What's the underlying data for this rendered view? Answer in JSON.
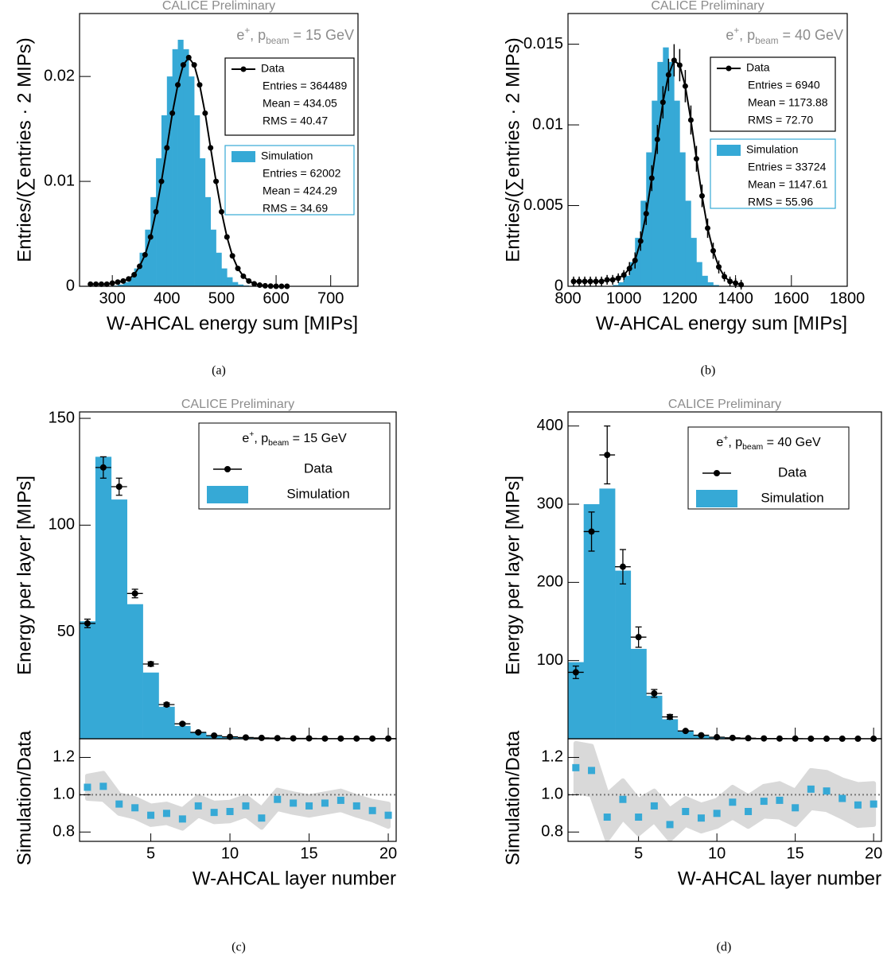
{
  "chart_data": [
    {
      "type": "histogram",
      "title": "CALICE Preliminary",
      "caption": "(a)",
      "xlabel": "W-AHCAL energy sum [MIPs]",
      "ylabel": "Entries/(∑entries · 2 MIPs)",
      "beam_label": [
        "e",
        "+",
        ", p",
        "beam",
        " = 15 GeV"
      ],
      "xlim": [
        240,
        750
      ],
      "xticks": [
        300,
        400,
        500,
        600,
        700
      ],
      "ylim": [
        0,
        0.026
      ],
      "yticks": [
        0,
        0.01,
        0.02
      ],
      "series": [
        {
          "name": "Data",
          "color": "#000000",
          "x": [
            260,
            270,
            280,
            290,
            300,
            310,
            320,
            330,
            340,
            350,
            360,
            370,
            380,
            390,
            400,
            410,
            420,
            430,
            440,
            450,
            460,
            470,
            480,
            490,
            500,
            510,
            520,
            530,
            540,
            550,
            560,
            570,
            580,
            590,
            600,
            610,
            620
          ],
          "values": [
            0.0002,
            0.0002,
            0.0002,
            0.0002,
            0.0003,
            0.0004,
            0.0005,
            0.0007,
            0.0011,
            0.0019,
            0.003,
            0.0047,
            0.0071,
            0.01,
            0.0132,
            0.0165,
            0.0192,
            0.0211,
            0.0218,
            0.0211,
            0.0192,
            0.0165,
            0.0132,
            0.01,
            0.0071,
            0.0047,
            0.0029,
            0.0017,
            0.00096,
            0.0005,
            0.00024,
            0.00011,
            5e-05,
            2e-05,
            0,
            0,
            0
          ],
          "stats": [
            "Entries = 364489",
            "Mean = 434.05",
            "RMS = 40.47"
          ]
        },
        {
          "name": "Simulation",
          "color": "#36a9d6",
          "bins": [
            300,
            310,
            320,
            330,
            340,
            350,
            360,
            370,
            380,
            390,
            400,
            410,
            420,
            430,
            440,
            450,
            460,
            470,
            480,
            490,
            500,
            510,
            520,
            530,
            540,
            550
          ],
          "values": [
            7e-05,
            0.00017,
            0.0004,
            0.00086,
            0.0017,
            0.0032,
            0.0054,
            0.0085,
            0.0122,
            0.0163,
            0.02,
            0.0226,
            0.0235,
            0.0226,
            0.02,
            0.0163,
            0.0122,
            0.0085,
            0.0054,
            0.0032,
            0.0017,
            0.00086,
            0.0004,
            0.00017,
            7e-05
          ],
          "stats": [
            "Entries = 62002",
            "Mean = 424.29",
            "RMS = 34.69"
          ]
        }
      ]
    },
    {
      "type": "histogram",
      "title": "CALICE Preliminary",
      "caption": "(b)",
      "xlabel": "W-AHCAL energy sum [MIPs]",
      "ylabel": "Entries/(∑entries · 2 MIPs)",
      "beam_label": [
        "e",
        "+",
        ", p",
        "beam",
        " = 40 GeV"
      ],
      "xlim": [
        800,
        1800
      ],
      "xticks": [
        800,
        1000,
        1200,
        1400,
        1600,
        1800
      ],
      "ylim": [
        0,
        0.0169
      ],
      "yticks": [
        0,
        0.005,
        0.01,
        0.015
      ],
      "series": [
        {
          "name": "Data",
          "color": "#000000",
          "x": [
            820,
            840,
            860,
            880,
            900,
            920,
            940,
            960,
            980,
            1000,
            1020,
            1040,
            1060,
            1080,
            1100,
            1120,
            1140,
            1160,
            1180,
            1200,
            1220,
            1240,
            1260,
            1280,
            1300,
            1320,
            1340,
            1360,
            1380,
            1400,
            1420
          ],
          "values": [
            0.0003,
            0.0003,
            0.0003,
            0.0003,
            0.0003,
            0.0003,
            0.0004,
            0.0004,
            0.0005,
            0.0007,
            0.0011,
            0.0016,
            0.0028,
            0.0045,
            0.0067,
            0.0091,
            0.0114,
            0.0131,
            0.014,
            0.0137,
            0.0124,
            0.0103,
            0.0079,
            0.0056,
            0.0036,
            0.0022,
            0.0012,
            0.0006,
            0.0003,
            0.0002,
            0.0001
          ],
          "errors": [
            0.0003,
            0.0003,
            0.0003,
            0.0003,
            0.0003,
            0.0003,
            0.0003,
            0.0003,
            0.0003,
            0.0003,
            0.0004,
            0.0005,
            0.0006,
            0.0007,
            0.0008,
            0.0009,
            0.001,
            0.001,
            0.001,
            0.001,
            0.001,
            0.0009,
            0.0008,
            0.0007,
            0.0006,
            0.0005,
            0.0004,
            0.0003,
            0.0003,
            0.0003,
            0.0003
          ],
          "stats": [
            "Entries = 6940",
            "Mean = 1173.88",
            "RMS = 72.70"
          ]
        },
        {
          "name": "Simulation",
          "color": "#36a9d6",
          "bins": [
            960,
            980,
            1000,
            1020,
            1040,
            1060,
            1080,
            1100,
            1120,
            1140,
            1160,
            1180,
            1200,
            1220,
            1240,
            1260,
            1280,
            1300,
            1320,
            1340
          ],
          "values": [
            8e-05,
            0.00025,
            0.00065,
            0.0015,
            0.003,
            0.0053,
            0.0083,
            0.0115,
            0.0139,
            0.0148,
            0.0139,
            0.0115,
            0.0083,
            0.0053,
            0.003,
            0.0015,
            0.00065,
            0.00025,
            8e-05
          ],
          "stats": [
            "Entries = 33724",
            "Mean = 1147.61",
            "RMS = 55.96"
          ]
        }
      ]
    },
    {
      "type": "layers",
      "title": "CALICE Preliminary",
      "caption": "(c)",
      "xlabel": "W-AHCAL layer number",
      "ylabel": "Energy per layer [MIPs]",
      "beam_label": [
        "e",
        "+",
        ", p",
        "beam",
        " = 15 GeV"
      ],
      "x": [
        1,
        2,
        3,
        4,
        5,
        6,
        7,
        8,
        9,
        10,
        11,
        12,
        13,
        14,
        15,
        16,
        17,
        18,
        19,
        20
      ],
      "x_error": 0.5,
      "xlim": [
        0.5,
        20.5
      ],
      "xticks": [
        5,
        10,
        15,
        20
      ],
      "ylim": [
        0,
        153
      ],
      "yticks": [
        50,
        100,
        150
      ],
      "series": [
        {
          "name": "Data",
          "color": "#000000",
          "values": [
            54,
            127,
            118,
            68,
            35,
            16,
            7,
            3,
            1.5,
            0.9,
            0.6,
            0.4,
            0.3,
            0.2,
            0.2,
            0.1,
            0.1,
            0.1,
            0.1,
            0.1
          ],
          "errors": [
            2,
            5,
            4,
            2,
            1,
            0.8,
            0.5,
            0.3,
            0.2,
            0.1,
            0.1,
            0.1,
            0.1,
            0.1,
            0.1,
            0.1,
            0.1,
            0.1,
            0.1,
            0.1
          ]
        },
        {
          "name": "Simulation",
          "color": "#36a9d6",
          "values": [
            55,
            132,
            112,
            63,
            31,
            15,
            6,
            3,
            1.5,
            0.8,
            0.5,
            0.3,
            0.2,
            0.1,
            0.1,
            0.1,
            0.05,
            0.05,
            0.03,
            0.02
          ]
        }
      ],
      "ratio": {
        "ylabel": "Simulation/Data",
        "ylim": [
          0.75,
          1.3
        ],
        "yticks": [
          0.8,
          {
            "value": 1,
            "label": "1.0"
          },
          1.2
        ],
        "reference": 1,
        "color": "#36a9d6",
        "band_color": "#d9d9d9",
        "values": [
          1.04,
          1.045,
          0.95,
          0.93,
          0.89,
          0.9,
          0.87,
          0.94,
          0.905,
          0.91,
          0.94,
          0.875,
          0.975,
          0.955,
          0.94,
          0.955,
          0.97,
          0.94,
          0.915,
          0.89
        ],
        "errors": [
          0.06,
          0.07,
          0.05,
          0.05,
          0.05,
          0.05,
          0.05,
          0.05,
          0.05,
          0.05,
          0.05,
          0.05,
          0.05,
          0.05,
          0.05,
          0.05,
          0.05,
          0.05,
          0.05,
          0.06
        ]
      }
    },
    {
      "type": "layers",
      "title": "CALICE Preliminary",
      "caption": "(d)",
      "xlabel": "W-AHCAL layer number",
      "ylabel": "Energy per layer [MIPs]",
      "beam_label": [
        "e",
        "+",
        ", p",
        "beam",
        " = 40 GeV"
      ],
      "x": [
        1,
        2,
        3,
        4,
        5,
        6,
        7,
        8,
        9,
        10,
        11,
        12,
        13,
        14,
        15,
        16,
        17,
        18,
        19,
        20
      ],
      "x_error": 0.5,
      "xlim": [
        0.5,
        20.5
      ],
      "xticks": [
        5,
        10,
        15,
        20
      ],
      "ylim": [
        0,
        418
      ],
      "yticks": [
        100,
        200,
        300,
        400
      ],
      "series": [
        {
          "name": "Data",
          "color": "#000000",
          "values": [
            85,
            265,
            363,
            220,
            130,
            58,
            28,
            10,
            4.5,
            2,
            1.2,
            0.7,
            0.4,
            0.3,
            0.2,
            0.1,
            0.1,
            0.1,
            0.1,
            0.1
          ],
          "errors": [
            8,
            25,
            37,
            22,
            13,
            5,
            3,
            1,
            0.5,
            0.3,
            0.2,
            0.1,
            0.1,
            0.1,
            0.1,
            0.1,
            0.1,
            0.1,
            0.1,
            0.1
          ]
        },
        {
          "name": "Simulation",
          "color": "#36a9d6",
          "values": [
            98,
            300,
            320,
            215,
            115,
            55,
            25,
            10,
            4,
            2,
            1,
            0.6,
            0.4,
            0.3,
            0.2,
            0.1,
            0.1,
            0.1,
            0.1,
            0.1
          ]
        }
      ],
      "ratio": {
        "ylabel": "Simulation/Data",
        "ylim": [
          0.75,
          1.3
        ],
        "yticks": [
          0.8,
          {
            "value": 1,
            "label": "1.0"
          },
          1.2
        ],
        "reference": 1,
        "color": "#36a9d6",
        "band_color": "#d9d9d9",
        "values": [
          1.145,
          1.13,
          0.88,
          0.975,
          0.88,
          0.94,
          0.84,
          0.91,
          0.875,
          0.9,
          0.96,
          0.91,
          0.965,
          0.97,
          0.93,
          1.03,
          1.02,
          0.98,
          0.945,
          0.95
        ],
        "errors": [
          0.13,
          0.13,
          0.12,
          0.1,
          0.09,
          0.08,
          0.08,
          0.07,
          0.07,
          0.07,
          0.08,
          0.08,
          0.08,
          0.09,
          0.09,
          0.1,
          0.1,
          0.1,
          0.11,
          0.11
        ]
      }
    }
  ]
}
